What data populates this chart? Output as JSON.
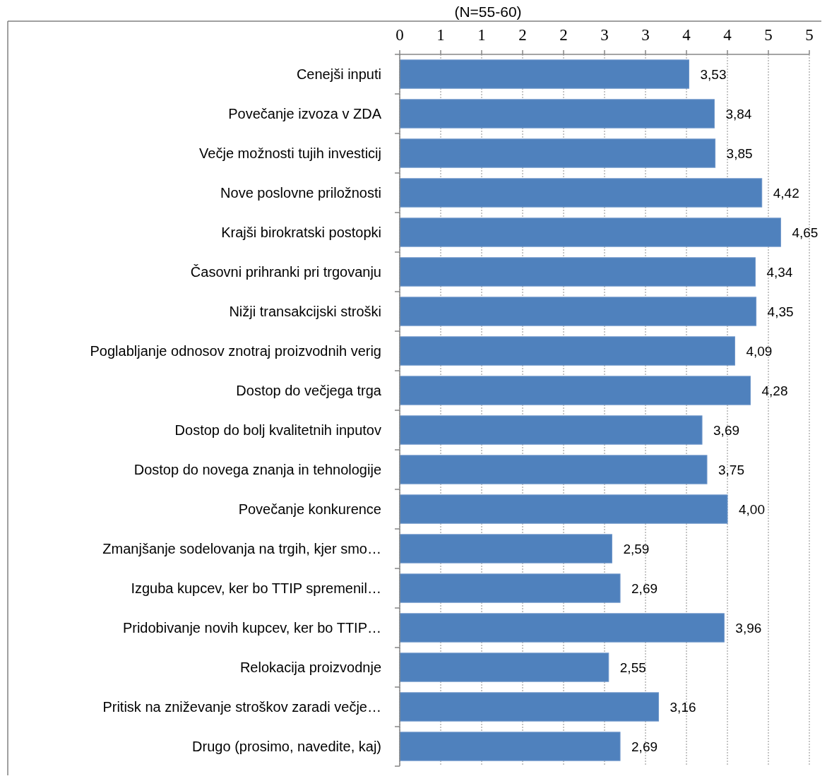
{
  "chart_data": {
    "type": "bar",
    "orientation": "horizontal",
    "title": "(N=55-60)",
    "categories": [
      "Cenejši inputi",
      "Povečanje izvoza v ZDA",
      "Večje možnosti tujih investicij",
      "Nove poslovne priložnosti",
      "Krajši birokratski postopki",
      "Časovni prihranki pri trgovanju",
      "Nižji transakcijski stroški",
      "Poglabljanje odnosov znotraj proizvodnih verig",
      "Dostop do večjega trga",
      "Dostop do bolj kvalitetnih inputov",
      "Dostop do novega znanja in tehnologije",
      "Povečanje konkurence",
      "Zmanjšanje sodelovanja na trgih, kjer smo…",
      "Izguba kupcev, ker bo TTIP spremenil…",
      "Pridobivanje novih kupcev, ker bo TTIP…",
      "Relokacija proizvodnje",
      "Pritisk na zniževanje stroškov zaradi večje…",
      "Drugo (prosimo, navedite, kaj)"
    ],
    "values": [
      3.53,
      3.84,
      3.85,
      4.42,
      4.65,
      4.34,
      4.35,
      4.09,
      4.28,
      3.69,
      3.75,
      4.0,
      2.59,
      2.69,
      3.96,
      2.55,
      3.16,
      2.69
    ],
    "value_labels": [
      "3,53",
      "3,84",
      "3,85",
      "4,42",
      "4,65",
      "4,34",
      "4,35",
      "4,09",
      "4,28",
      "3,69",
      "3,75",
      "4,00",
      "2,59",
      "2,69",
      "3,96",
      "2,55",
      "3,16",
      "2,69"
    ],
    "color": "#4f81bd",
    "xlim": [
      0,
      5
    ],
    "xticks": [
      0,
      {
        "value": 0.5,
        "label": "1"
      },
      1,
      {
        "value": 1.5,
        "label": "2"
      },
      2,
      {
        "value": 2.5,
        "label": "3"
      },
      3,
      {
        "value": 3.5,
        "label": "4"
      },
      4,
      {
        "value": 4.5,
        "label": "5"
      },
      5
    ],
    "grid": "x"
  }
}
